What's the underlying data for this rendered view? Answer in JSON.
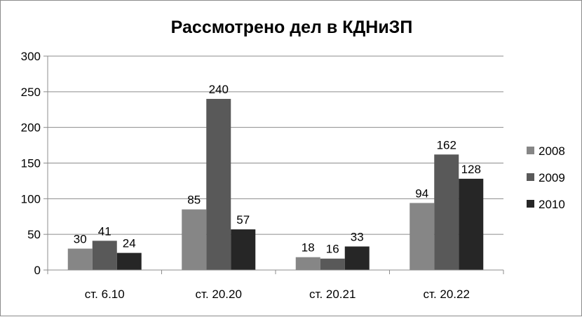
{
  "chart_data": {
    "type": "bar",
    "title": "Рассмотрено дел в КДНиЗП",
    "xlabel": "",
    "ylabel": "",
    "ylim": [
      0,
      300
    ],
    "yticks": [
      0,
      50,
      100,
      150,
      200,
      250,
      300
    ],
    "grid": true,
    "legend_position": "right",
    "categories": [
      "ст. 6.10",
      "ст. 20.20",
      "ст. 20.21",
      "ст. 20.22"
    ],
    "series": [
      {
        "name": "2008",
        "color": "#868686",
        "values": [
          30,
          85,
          18,
          94
        ]
      },
      {
        "name": "2009",
        "color": "#595959",
        "values": [
          41,
          240,
          16,
          162
        ]
      },
      {
        "name": "2010",
        "color": "#262626",
        "values": [
          24,
          57,
          33,
          128
        ]
      }
    ]
  }
}
